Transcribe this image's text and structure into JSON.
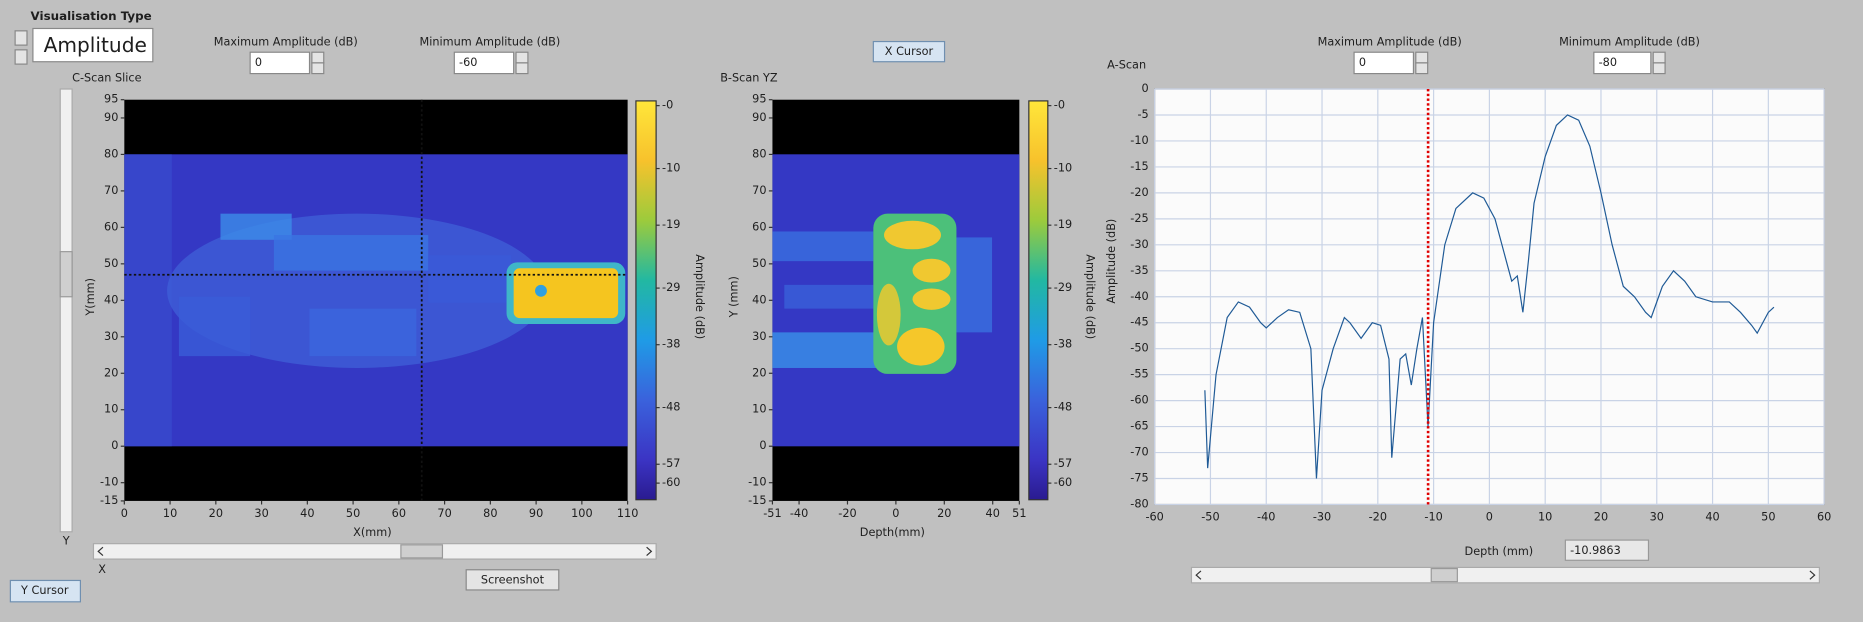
{
  "header": {
    "visualisation_type_label": "Visualisation Type",
    "visualisation_type": "Amplitude"
  },
  "buttons": {
    "x_cursor": "X Cursor",
    "y_cursor": "Y Cursor",
    "screenshot": "Screenshot"
  },
  "scroll_labels": {
    "x": "X",
    "y": "Y"
  },
  "chart_data": [
    {
      "type": "heatmap",
      "title": "C-Scan Slice",
      "max_amplitude_label": "Maximum Amplitude (dB)",
      "max_amplitude": 0,
      "min_amplitude_label": "Minimum Amplitude (dB)",
      "min_amplitude": -60,
      "xlabel": "X(mm)",
      "ylabel": "Y(mm)",
      "xlim": [
        0,
        110
      ],
      "ylim": [
        -15,
        95
      ],
      "xticks": [
        0,
        10,
        20,
        30,
        40,
        50,
        60,
        70,
        80,
        90,
        100,
        110
      ],
      "yticks": [
        95,
        90,
        80,
        70,
        60,
        50,
        40,
        30,
        20,
        10,
        0,
        -10,
        -15
      ],
      "colorbar_label": "Amplitude (dB)",
      "clim": [
        -60,
        0
      ],
      "cticks": [
        {
          "value": 0,
          "label": "-0"
        },
        -10,
        -19,
        -29,
        -38,
        -48,
        -57,
        -60
      ],
      "cursor": {
        "x": 65,
        "y": 47
      }
    },
    {
      "type": "heatmap",
      "title": "B-Scan YZ",
      "xlabel": "Depth(mm)",
      "ylabel": "Y (mm)",
      "xlim": [
        -51,
        51
      ],
      "ylim": [
        -15,
        95
      ],
      "xticks": [
        -51,
        -40,
        -20,
        0,
        20,
        40,
        51
      ],
      "yticks": [
        95,
        90,
        80,
        70,
        60,
        50,
        40,
        30,
        20,
        10,
        0,
        -10,
        -15
      ],
      "colorbar_label": "Amplitude (dB)",
      "clim": [
        -60,
        0
      ],
      "cticks": [
        {
          "value": 0,
          "label": "-0"
        },
        -10,
        -19,
        -29,
        -38,
        -48,
        -57,
        -60
      ]
    },
    {
      "type": "line",
      "title": "A-Scan",
      "max_amplitude_label": "Maximum Amplitude (dB)",
      "max_amplitude": 0,
      "min_amplitude_label": "Minimum Amplitude (dB)",
      "min_amplitude": -80,
      "xlabel": "Depth (mm)",
      "ylabel": "Amplitude (dB)",
      "xlim": [
        -60,
        60
      ],
      "ylim": [
        -80,
        0
      ],
      "xticks": [
        -60,
        -50,
        -40,
        -30,
        -20,
        -10,
        0,
        10,
        20,
        30,
        40,
        50,
        60
      ],
      "yticks": [
        0,
        -5,
        -10,
        -15,
        -20,
        -25,
        -30,
        -35,
        -40,
        -45,
        -50,
        -55,
        -60,
        -65,
        -70,
        -75,
        -80
      ],
      "grid": true,
      "color": "#1f5a96",
      "x": [
        -51,
        -50.5,
        -49,
        -47,
        -45,
        -43,
        -41,
        -40,
        -38,
        -36,
        -34,
        -32,
        -31,
        -30,
        -28,
        -26,
        -25,
        -23,
        -21,
        -19.5,
        -18,
        -17.5,
        -16,
        -15,
        -14,
        -13,
        -12,
        -11,
        -10,
        -8,
        -6,
        -3,
        -1,
        1,
        3,
        4,
        5,
        6,
        7,
        8,
        10,
        12,
        14,
        16,
        18,
        20,
        22,
        24,
        26,
        28,
        29,
        31,
        33,
        35,
        37,
        40,
        43,
        45,
        47,
        48,
        50,
        51
      ],
      "values": [
        -58,
        -73,
        -55,
        -44,
        -41,
        -42,
        -45,
        -46,
        -44,
        -42.5,
        -43,
        -50,
        -75,
        -58,
        -50,
        -44,
        -45,
        -48,
        -45,
        -45.5,
        -52,
        -71,
        -52,
        -51,
        -57,
        -50,
        -44,
        -65,
        -45,
        -30,
        -23,
        -20,
        -21,
        -25,
        -33,
        -37,
        -36,
        -43,
        -33,
        -22,
        -13,
        -7,
        -5,
        -6,
        -11,
        -20,
        -30,
        -38,
        -40,
        -43,
        -44,
        -38,
        -35,
        -37,
        -40,
        -41,
        -41,
        -43,
        -45.5,
        -47,
        -43,
        -42
      ],
      "cursor": -10.9863,
      "cursor_color": "#e00000"
    }
  ]
}
